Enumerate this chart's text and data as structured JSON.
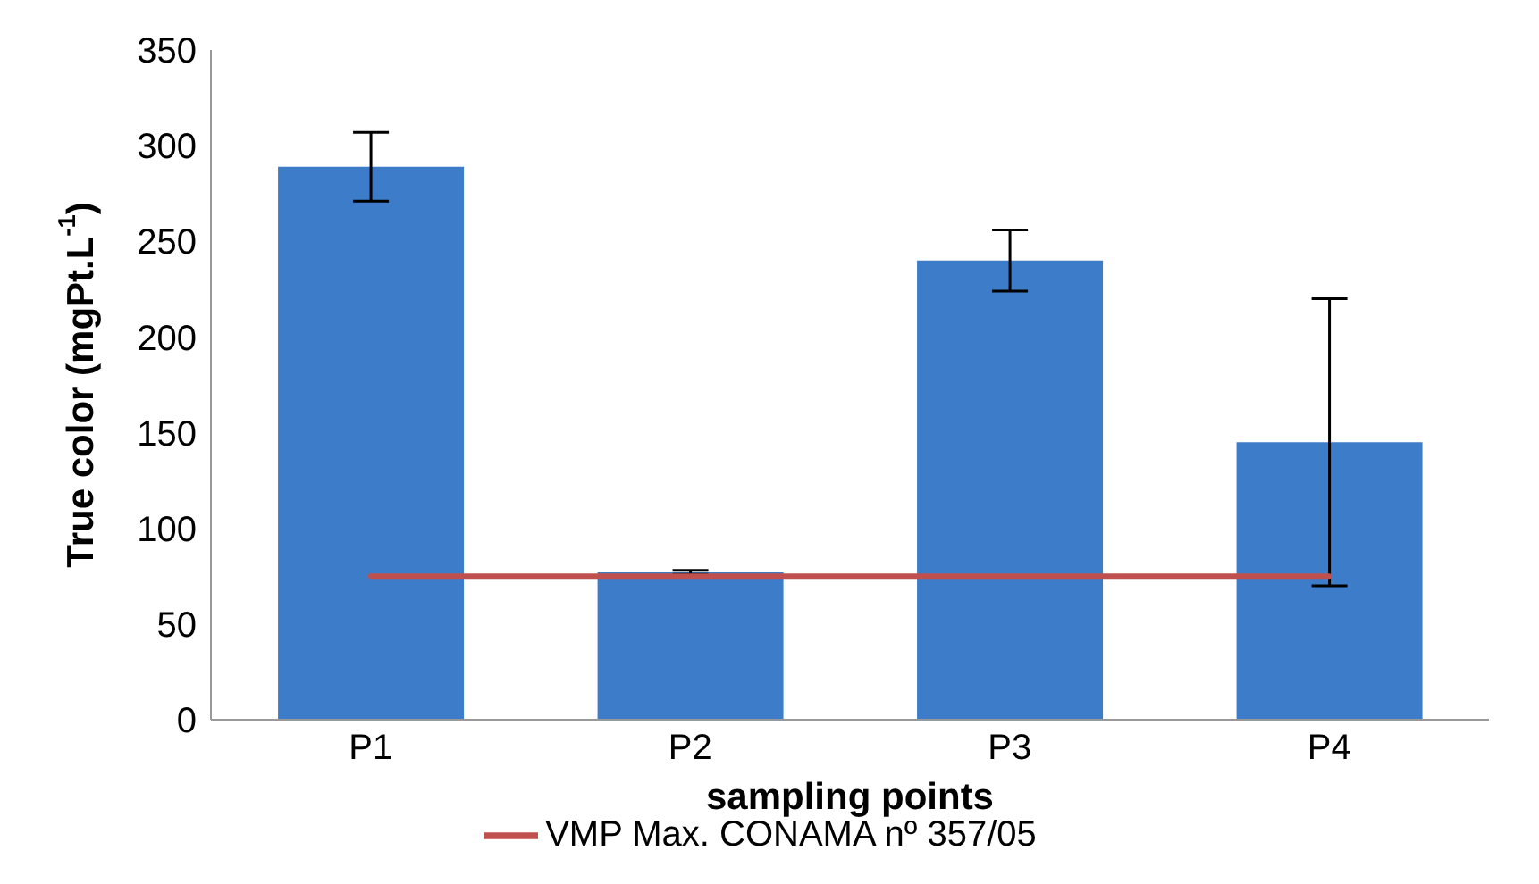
{
  "chart_data": {
    "type": "bar",
    "xlabel": "sampling points",
    "ylabel": "True color (mgPt.L$^{-1}$)",
    "categories": [
      "P1",
      "P2",
      "P3",
      "P4"
    ],
    "series": [
      {
        "color": "#3d7cc9",
        "values": [
          289,
          77,
          240,
          145
        ],
        "errors": [
          18,
          1,
          16,
          75
        ]
      },
      {
        "type": "line",
        "name": "VMP Max. CONAMA nº 357/05",
        "color": "#c0504d",
        "values": [
          75,
          75,
          75,
          75
        ]
      }
    ],
    "ylim": [
      0,
      350
    ],
    "yticks": [
      0,
      50,
      100,
      150,
      200,
      250,
      300,
      350
    ],
    "grid": false,
    "legend": "bottom"
  }
}
